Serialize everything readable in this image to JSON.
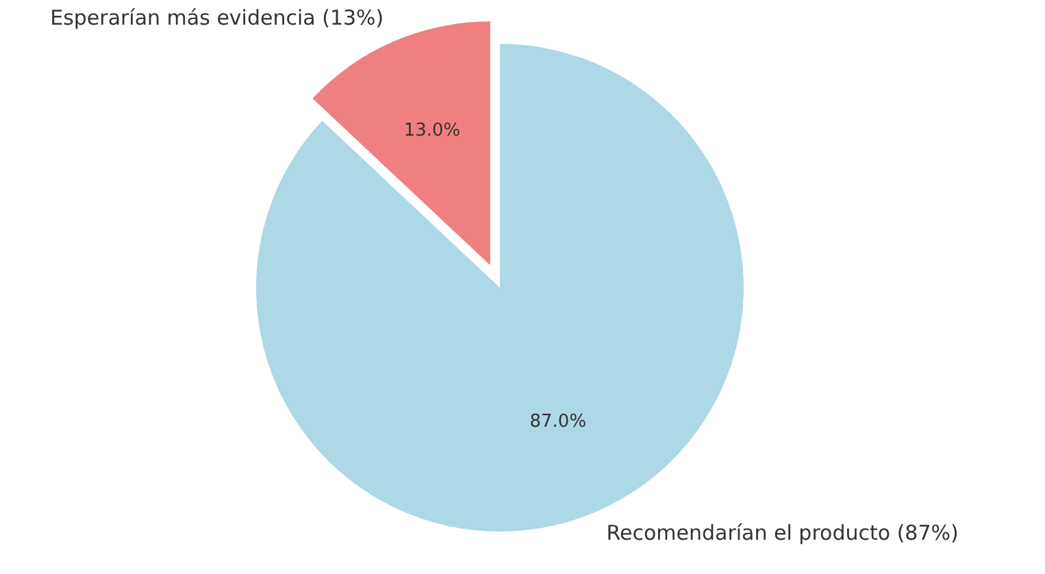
{
  "chart_data": {
    "type": "pie",
    "categories": [
      "Recomendarían el producto (87%)",
      "Esperarían más evidencia (13%)"
    ],
    "values": [
      87,
      13
    ],
    "colors": [
      "#add8e6",
      "#f08080"
    ],
    "value_labels": [
      "87.0%",
      "13.0%"
    ]
  }
}
